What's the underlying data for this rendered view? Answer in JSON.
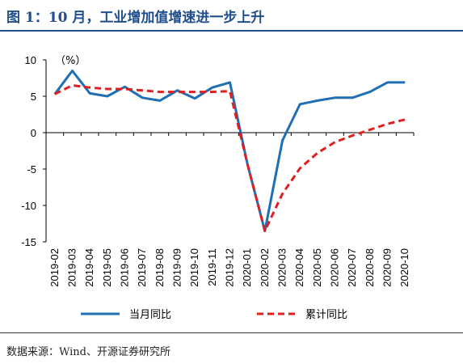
{
  "header": {
    "title": "图 1：10 月，工业增加值增速进一步上升"
  },
  "footer": {
    "source": "数据来源：Wind、开源证券研究所"
  },
  "chart_data": {
    "type": "line",
    "title": "图 1：10 月，工业增加值增速进一步上升",
    "unit_label": "（%）",
    "ylim": [
      -15,
      10
    ],
    "yticks": [
      10,
      5,
      0,
      -5,
      -10,
      -15
    ],
    "grid": false,
    "legend_position": "bottom",
    "categories": [
      "2019-02",
      "2019-03",
      "2019-04",
      "2019-05",
      "2019-06",
      "2019-07",
      "2019-08",
      "2019-09",
      "2019-10",
      "2019-11",
      "2019-12",
      "2020-01",
      "2020-02",
      "2020-03",
      "2020-04",
      "2020-05",
      "2020-06",
      "2020-07",
      "2020-08",
      "2020-09",
      "2020-10"
    ],
    "series": [
      {
        "name": "当月同比",
        "color": "#1f6fb2",
        "style": "solid",
        "values": [
          5.3,
          8.5,
          5.4,
          5.0,
          6.3,
          4.8,
          4.4,
          5.8,
          4.7,
          6.2,
          6.9,
          -4.3,
          -13.5,
          -1.1,
          3.9,
          4.4,
          4.8,
          4.8,
          5.6,
          6.9,
          6.9
        ]
      },
      {
        "name": "累计同比",
        "color": "#e02020",
        "style": "dashed",
        "values": [
          5.3,
          6.5,
          6.2,
          6.0,
          6.0,
          5.8,
          5.6,
          5.6,
          5.6,
          5.6,
          5.7,
          -4.3,
          -13.5,
          -8.4,
          -4.9,
          -2.8,
          -1.3,
          -0.4,
          0.4,
          1.2,
          1.8
        ]
      }
    ]
  }
}
